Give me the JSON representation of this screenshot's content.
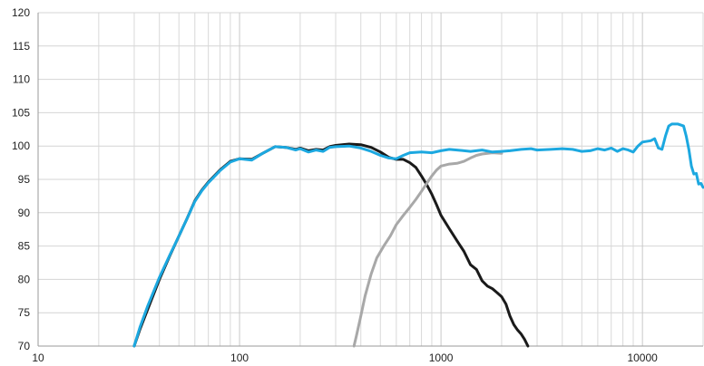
{
  "chart_data": {
    "type": "line",
    "title": "",
    "xlabel": "",
    "ylabel": "",
    "x_scale": "log",
    "xlim": [
      10,
      20000
    ],
    "ylim": [
      70,
      120
    ],
    "grid": true,
    "x_tick_labels": [
      "10",
      "100",
      "1000",
      "10000"
    ],
    "x_ticks": [
      10,
      100,
      1000,
      10000
    ],
    "y_tick_labels": [
      "70",
      "75",
      "80",
      "85",
      "90",
      "95",
      "100",
      "105",
      "110",
      "115",
      "120"
    ],
    "y_ticks": [
      70,
      75,
      80,
      85,
      90,
      95,
      100,
      105,
      110,
      115,
      120
    ],
    "series": [
      {
        "color": "#1a1a1a",
        "width": 3,
        "points": [
          [
            30,
            70
          ],
          [
            32,
            72.5
          ],
          [
            35,
            75.5
          ],
          [
            40,
            80
          ],
          [
            45,
            83.5
          ],
          [
            50,
            86.5
          ],
          [
            55,
            89.2
          ],
          [
            60,
            91.8
          ],
          [
            65,
            93.4
          ],
          [
            70,
            94.6
          ],
          [
            80,
            96.4
          ],
          [
            90,
            97.7
          ],
          [
            100,
            98.1
          ],
          [
            115,
            98.0
          ],
          [
            130,
            98.9
          ],
          [
            150,
            99.9
          ],
          [
            170,
            99.8
          ],
          [
            190,
            99.5
          ],
          [
            200,
            99.7
          ],
          [
            220,
            99.3
          ],
          [
            240,
            99.5
          ],
          [
            260,
            99.4
          ],
          [
            280,
            99.9
          ],
          [
            300,
            100.1
          ],
          [
            350,
            100.3
          ],
          [
            400,
            100.2
          ],
          [
            450,
            99.8
          ],
          [
            500,
            99.1
          ],
          [
            550,
            98.3
          ],
          [
            600,
            98.0
          ],
          [
            650,
            98.0
          ],
          [
            700,
            97.5
          ],
          [
            750,
            96.8
          ],
          [
            800,
            95.5
          ],
          [
            850,
            94.2
          ],
          [
            900,
            92.8
          ],
          [
            950,
            91.2
          ],
          [
            1000,
            89.6
          ],
          [
            1100,
            87.6
          ],
          [
            1200,
            85.8
          ],
          [
            1300,
            84.2
          ],
          [
            1400,
            82.2
          ],
          [
            1500,
            81.5
          ],
          [
            1600,
            79.8
          ],
          [
            1700,
            79.0
          ],
          [
            1800,
            78.6
          ],
          [
            1900,
            78.0
          ],
          [
            2000,
            77.4
          ],
          [
            2100,
            76.3
          ],
          [
            2200,
            74.5
          ],
          [
            2300,
            73.2
          ],
          [
            2400,
            72.4
          ],
          [
            2500,
            71.8
          ],
          [
            2600,
            71.0
          ],
          [
            2700,
            70.0
          ]
        ]
      },
      {
        "color": "#a8a8a8",
        "width": 3,
        "points": [
          [
            370,
            70
          ],
          [
            380,
            71.5
          ],
          [
            400,
            74.5
          ],
          [
            420,
            77.5
          ],
          [
            450,
            80.8
          ],
          [
            480,
            83.2
          ],
          [
            520,
            85.0
          ],
          [
            560,
            86.5
          ],
          [
            600,
            88.2
          ],
          [
            650,
            89.6
          ],
          [
            700,
            90.8
          ],
          [
            750,
            92.0
          ],
          [
            800,
            93.2
          ],
          [
            850,
            94.4
          ],
          [
            900,
            95.5
          ],
          [
            950,
            96.4
          ],
          [
            1000,
            97.0
          ],
          [
            1100,
            97.3
          ],
          [
            1200,
            97.4
          ],
          [
            1300,
            97.7
          ],
          [
            1400,
            98.2
          ],
          [
            1500,
            98.6
          ],
          [
            1600,
            98.8
          ],
          [
            1800,
            99.0
          ],
          [
            2000,
            98.9
          ]
        ]
      },
      {
        "color": "#1ca8e0",
        "width": 3,
        "points": [
          [
            30,
            70
          ],
          [
            32,
            72.8
          ],
          [
            35,
            76.0
          ],
          [
            40,
            80.3
          ],
          [
            45,
            83.6
          ],
          [
            50,
            86.5
          ],
          [
            55,
            89.2
          ],
          [
            60,
            91.7
          ],
          [
            65,
            93.3
          ],
          [
            70,
            94.5
          ],
          [
            80,
            96.3
          ],
          [
            90,
            97.6
          ],
          [
            100,
            98.1
          ],
          [
            115,
            97.9
          ],
          [
            130,
            98.9
          ],
          [
            150,
            99.9
          ],
          [
            170,
            99.8
          ],
          [
            190,
            99.4
          ],
          [
            200,
            99.6
          ],
          [
            220,
            99.1
          ],
          [
            240,
            99.4
          ],
          [
            260,
            99.2
          ],
          [
            280,
            99.8
          ],
          [
            300,
            99.9
          ],
          [
            350,
            100.0
          ],
          [
            400,
            99.7
          ],
          [
            450,
            99.2
          ],
          [
            500,
            98.6
          ],
          [
            550,
            98.2
          ],
          [
            600,
            98.1
          ],
          [
            650,
            98.6
          ],
          [
            700,
            99.0
          ],
          [
            800,
            99.1
          ],
          [
            900,
            99.0
          ],
          [
            1000,
            99.3
          ],
          [
            1100,
            99.5
          ],
          [
            1200,
            99.4
          ],
          [
            1400,
            99.2
          ],
          [
            1600,
            99.4
          ],
          [
            1800,
            99.1
          ],
          [
            2000,
            99.2
          ],
          [
            2200,
            99.3
          ],
          [
            2500,
            99.5
          ],
          [
            2800,
            99.6
          ],
          [
            3000,
            99.4
          ],
          [
            3500,
            99.5
          ],
          [
            4000,
            99.6
          ],
          [
            4500,
            99.5
          ],
          [
            5000,
            99.2
          ],
          [
            5500,
            99.3
          ],
          [
            6000,
            99.6
          ],
          [
            6500,
            99.4
          ],
          [
            7000,
            99.7
          ],
          [
            7500,
            99.2
          ],
          [
            8000,
            99.6
          ],
          [
            8500,
            99.4
          ],
          [
            9000,
            99.1
          ],
          [
            9500,
            100.0
          ],
          [
            10000,
            100.6
          ],
          [
            11000,
            100.8
          ],
          [
            11500,
            101.1
          ],
          [
            12000,
            99.7
          ],
          [
            12500,
            99.5
          ],
          [
            13000,
            101.5
          ],
          [
            13500,
            103.0
          ],
          [
            14000,
            103.3
          ],
          [
            15000,
            103.3
          ],
          [
            16000,
            103.0
          ],
          [
            16500,
            101.5
          ],
          [
            17000,
            99.5
          ],
          [
            17500,
            97.0
          ],
          [
            18000,
            95.8
          ],
          [
            18500,
            95.9
          ],
          [
            19000,
            94.3
          ],
          [
            19500,
            94.4
          ],
          [
            20000,
            93.8
          ]
        ]
      }
    ]
  }
}
